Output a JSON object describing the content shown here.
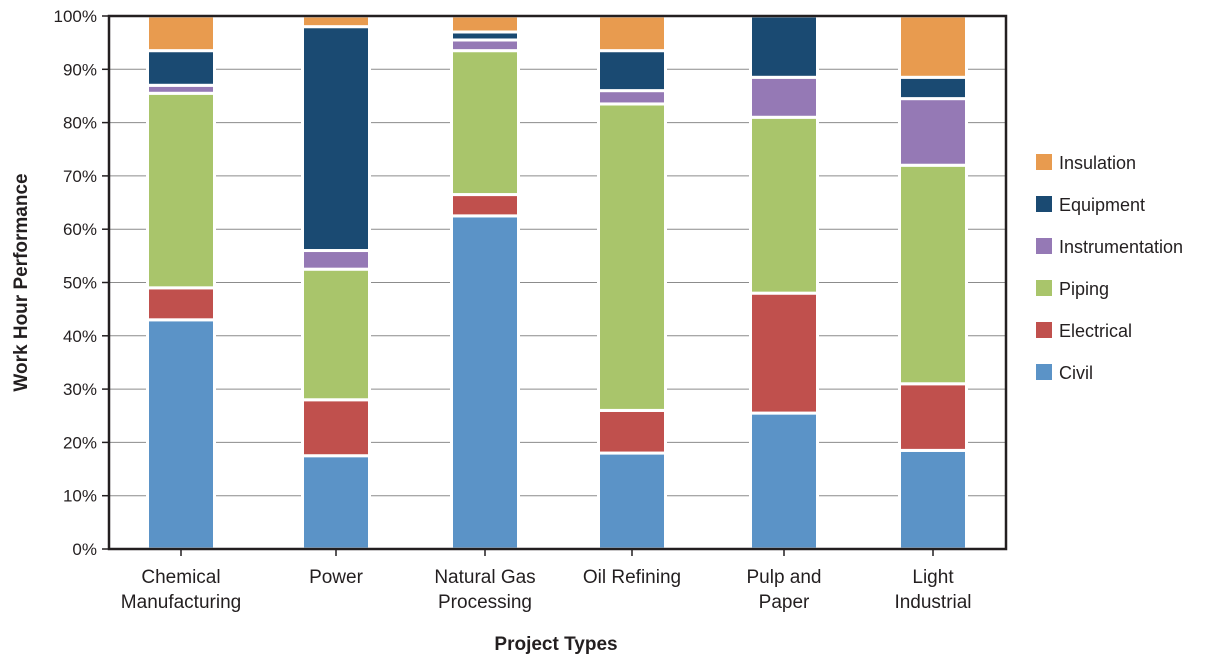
{
  "chart_data": {
    "type": "bar",
    "stacked": true,
    "title": "",
    "xlabel": "Project Types",
    "ylabel": "Work Hour Performance",
    "ylim": [
      0,
      100
    ],
    "y_unit": "%",
    "y_ticks": [
      "0%",
      "10%",
      "20%",
      "30%",
      "40%",
      "50%",
      "60%",
      "70%",
      "80%",
      "90%",
      "100%"
    ],
    "grid": true,
    "legend_position": "right",
    "categories": [
      [
        "Chemical",
        "Manufacturing"
      ],
      [
        "Power"
      ],
      [
        "Natural Gas",
        "Processing"
      ],
      [
        "Oil Refining"
      ],
      [
        "Pulp and",
        "Paper"
      ],
      [
        "Light",
        "Industrial"
      ]
    ],
    "series": [
      {
        "name": "Civil",
        "color": "#5b93c7",
        "values": [
          43,
          17.5,
          62.5,
          18,
          25.5,
          18.5
        ]
      },
      {
        "name": "Electrical",
        "color": "#c0504d",
        "values": [
          6,
          10.5,
          4,
          8,
          22.5,
          12.5
        ]
      },
      {
        "name": "Piping",
        "color": "#a9c56b",
        "values": [
          36.5,
          24.5,
          27,
          57.5,
          33,
          41
        ]
      },
      {
        "name": "Instrumentation",
        "color": "#9579b5",
        "values": [
          1.5,
          3.5,
          2,
          2.5,
          7.5,
          12.5
        ]
      },
      {
        "name": "Equipment",
        "color": "#1a4a72",
        "values": [
          6.5,
          42,
          1.5,
          7.5,
          11.5,
          4
        ]
      },
      {
        "name": "Insulation",
        "color": "#e89b4f",
        "values": [
          6.5,
          2,
          3,
          6.5,
          0,
          11.5
        ]
      }
    ]
  }
}
